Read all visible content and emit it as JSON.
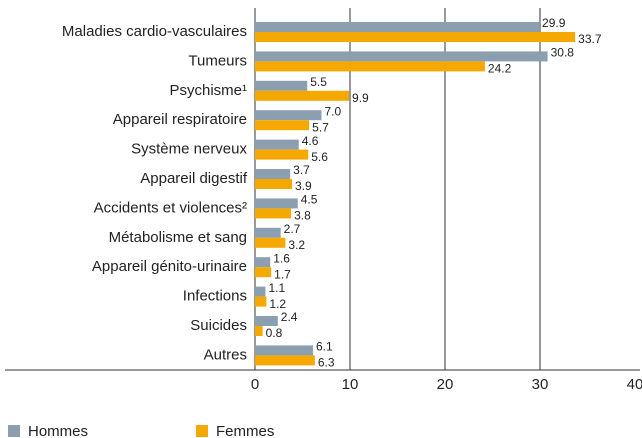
{
  "chart_data": {
    "type": "hbar",
    "categories": [
      "Maladies cardio-vasculaires",
      "Tumeurs",
      "Psychisme¹",
      "Appareil respiratoire",
      "Système nerveux",
      "Appareil digestif",
      "Accidents et violences²",
      "Métabolisme et sang",
      "Appareil génito-urinaire",
      "Infections",
      "Suicides",
      "Autres"
    ],
    "series": [
      {
        "name": "Hommes",
        "color": "#8c9fb1",
        "values": [
          29.9,
          30.8,
          5.5,
          7.0,
          4.6,
          3.7,
          4.5,
          2.7,
          1.6,
          1.1,
          2.4,
          6.1
        ],
        "value_labels": [
          "29.9",
          "30.8",
          "5.5",
          "7.0",
          "4.6",
          "3.7",
          "4.5",
          "2.7",
          "1.6",
          "1.1",
          "2.4",
          "6.1"
        ]
      },
      {
        "name": "Femmes",
        "color": "#f5a800",
        "values": [
          33.7,
          24.2,
          9.9,
          5.7,
          5.6,
          3.9,
          3.8,
          3.2,
          1.7,
          1.2,
          0.8,
          6.3
        ],
        "value_labels": [
          "33.7",
          "24.2",
          "9.9",
          "5.7",
          "5.6",
          "3.9",
          "3.8",
          "3.2",
          "1.7",
          "1.2",
          "0.8",
          "6.3"
        ]
      }
    ],
    "xlim": [
      0,
      40
    ],
    "xticks": [
      0,
      10,
      20,
      30,
      40
    ],
    "grid": true
  }
}
